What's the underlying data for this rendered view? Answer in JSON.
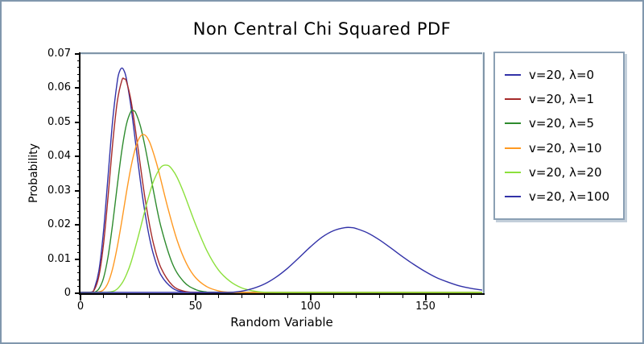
{
  "colors": {
    "frame_border": "#8097ad",
    "plot_frame": "#8095a8",
    "axis": "#000000",
    "background": "#ffffff",
    "legend_border": "#8ba0b4",
    "legend_shadow": "#c3cfda"
  },
  "chart_data": {
    "type": "line",
    "title": "Non Central Chi Squared PDF",
    "xlabel": "Random Variable",
    "ylabel": "Probability",
    "xlim": [
      0,
      175
    ],
    "ylim": [
      0,
      0.07
    ],
    "grid": false,
    "legend_position": "right-outside",
    "x_ticks": {
      "values": [
        0,
        50,
        100,
        150
      ],
      "labels": [
        "0",
        "50",
        "100",
        "150"
      ],
      "minor_step": 10
    },
    "y_ticks": {
      "values": [
        0,
        0.01,
        0.02,
        0.03,
        0.04,
        0.05,
        0.06,
        0.07
      ],
      "labels": [
        "0",
        "0.01",
        "0.02",
        "0.03",
        "0.04",
        "0.05",
        "0.06",
        "0.07"
      ],
      "minor_step": 0.002
    },
    "series": [
      {
        "name": "v=20, λ=0",
        "color": "#3232a8",
        "points": [
          [
            0,
            0
          ],
          [
            3,
            2e-05
          ],
          [
            5,
            0.0004
          ],
          [
            6,
            0.0013
          ],
          [
            8,
            0.0066
          ],
          [
            10,
            0.0181
          ],
          [
            12,
            0.0344
          ],
          [
            14,
            0.0507
          ],
          [
            16,
            0.062
          ],
          [
            17,
            0.0649
          ],
          [
            18,
            0.0659
          ],
          [
            19,
            0.065
          ],
          [
            20,
            0.0626
          ],
          [
            22,
            0.0543
          ],
          [
            24,
            0.0437
          ],
          [
            26,
            0.033
          ],
          [
            28,
            0.0237
          ],
          [
            30,
            0.0162
          ],
          [
            32,
            0.0107
          ],
          [
            35,
            0.0053
          ],
          [
            40,
            0.0015
          ],
          [
            45,
            0.00034
          ],
          [
            50,
            7e-05
          ],
          [
            55,
            1e-05
          ],
          [
            70,
            0
          ],
          [
            120,
            0
          ],
          [
            175,
            0
          ]
        ]
      },
      {
        "name": "v=20, λ=1",
        "color": "#a52a2a",
        "points": [
          [
            0,
            0
          ],
          [
            4,
            7e-05
          ],
          [
            6,
            0.001
          ],
          [
            8,
            0.005
          ],
          [
            10,
            0.0143
          ],
          [
            12,
            0.0284
          ],
          [
            14,
            0.0439
          ],
          [
            16,
            0.0561
          ],
          [
            18,
            0.0623
          ],
          [
            19,
            0.0627
          ],
          [
            20,
            0.0619
          ],
          [
            22,
            0.0562
          ],
          [
            24,
            0.0473
          ],
          [
            26,
            0.0375
          ],
          [
            28,
            0.028
          ],
          [
            30,
            0.0201
          ],
          [
            32,
            0.0138
          ],
          [
            35,
            0.0074
          ],
          [
            40,
            0.00227
          ],
          [
            45,
            0.0006
          ],
          [
            50,
            0.00014
          ],
          [
            55,
            3e-05
          ],
          [
            70,
            0
          ],
          [
            120,
            0
          ],
          [
            175,
            0
          ]
        ]
      },
      {
        "name": "v=20, λ=5",
        "color": "#2e8b2e",
        "points": [
          [
            0,
            0
          ],
          [
            5,
            0.0001
          ],
          [
            6,
            0.0002
          ],
          [
            8,
            0.0013
          ],
          [
            10,
            0.0044
          ],
          [
            12,
            0.0108
          ],
          [
            14,
            0.0204
          ],
          [
            16,
            0.0315
          ],
          [
            18,
            0.0419
          ],
          [
            20,
            0.0495
          ],
          [
            22,
            0.0533
          ],
          [
            23,
            0.0534
          ],
          [
            24,
            0.0528
          ],
          [
            26,
            0.049
          ],
          [
            28,
            0.0431
          ],
          [
            30,
            0.0361
          ],
          [
            32,
            0.029
          ],
          [
            35,
            0.0194
          ],
          [
            40,
            0.0086
          ],
          [
            45,
            0.0033
          ],
          [
            50,
            0.0011
          ],
          [
            55,
            0.00034
          ],
          [
            60,
            0.0001
          ],
          [
            70,
            0
          ],
          [
            120,
            0
          ],
          [
            175,
            0
          ]
        ]
      },
      {
        "name": "v=20, λ=10",
        "color": "#ff9922",
        "points": [
          [
            0,
            0
          ],
          [
            6,
            0.0001
          ],
          [
            8,
            0.0004
          ],
          [
            10,
            0.001
          ],
          [
            12,
            0.0031
          ],
          [
            14,
            0.0073
          ],
          [
            16,
            0.0136
          ],
          [
            18,
            0.0213
          ],
          [
            20,
            0.0296
          ],
          [
            22,
            0.0371
          ],
          [
            24,
            0.0427
          ],
          [
            26,
            0.0459
          ],
          [
            28,
            0.0463
          ],
          [
            30,
            0.0443
          ],
          [
            32,
            0.0404
          ],
          [
            34,
            0.0357
          ],
          [
            38,
            0.0249
          ],
          [
            42,
            0.0155
          ],
          [
            46,
            0.0088
          ],
          [
            50,
            0.0046
          ],
          [
            55,
            0.0019
          ],
          [
            60,
            0.0007
          ],
          [
            65,
            0.00025
          ],
          [
            70,
            8e-05
          ],
          [
            80,
            0
          ],
          [
            130,
            0
          ],
          [
            175,
            0
          ]
        ]
      },
      {
        "name": "v=20, λ=20",
        "color": "#8ce03c",
        "points": [
          [
            0,
            0
          ],
          [
            10,
            0.0001
          ],
          [
            15,
            0.0008
          ],
          [
            18,
            0.0029
          ],
          [
            20,
            0.0055
          ],
          [
            22,
            0.0091
          ],
          [
            25,
            0.0163
          ],
          [
            28,
            0.0242
          ],
          [
            30,
            0.0291
          ],
          [
            32,
            0.0332
          ],
          [
            35,
            0.0369
          ],
          [
            38,
            0.0374
          ],
          [
            40,
            0.0361
          ],
          [
            42,
            0.0339
          ],
          [
            45,
            0.0292
          ],
          [
            50,
            0.0202
          ],
          [
            55,
            0.0124
          ],
          [
            60,
            0.0068
          ],
          [
            65,
            0.0035
          ],
          [
            70,
            0.0016
          ],
          [
            75,
            0.0007
          ],
          [
            80,
            0.0003
          ],
          [
            85,
            0.00013
          ],
          [
            90,
            5e-05
          ],
          [
            100,
            0
          ],
          [
            140,
            0
          ],
          [
            175,
            0
          ]
        ]
      },
      {
        "name": "v=20, λ=100",
        "color": "#3232a8",
        "points": [
          [
            0,
            0
          ],
          [
            40,
            0
          ],
          [
            50,
            1e-05
          ],
          [
            55,
            2e-05
          ],
          [
            60,
            7e-05
          ],
          [
            65,
            0.00025
          ],
          [
            70,
            0.0006
          ],
          [
            75,
            0.0014
          ],
          [
            80,
            0.0027
          ],
          [
            85,
            0.0047
          ],
          [
            90,
            0.0073
          ],
          [
            95,
            0.0104
          ],
          [
            100,
            0.0136
          ],
          [
            105,
            0.0164
          ],
          [
            110,
            0.0183
          ],
          [
            115,
            0.0192
          ],
          [
            118,
            0.0192
          ],
          [
            120,
            0.0189
          ],
          [
            125,
            0.0176
          ],
          [
            130,
            0.0156
          ],
          [
            135,
            0.0132
          ],
          [
            140,
            0.0107
          ],
          [
            145,
            0.0084
          ],
          [
            150,
            0.0063
          ],
          [
            155,
            0.0045
          ],
          [
            160,
            0.0032
          ],
          [
            165,
            0.0021
          ],
          [
            170,
            0.0014
          ],
          [
            175,
            0.0009
          ]
        ]
      }
    ]
  }
}
